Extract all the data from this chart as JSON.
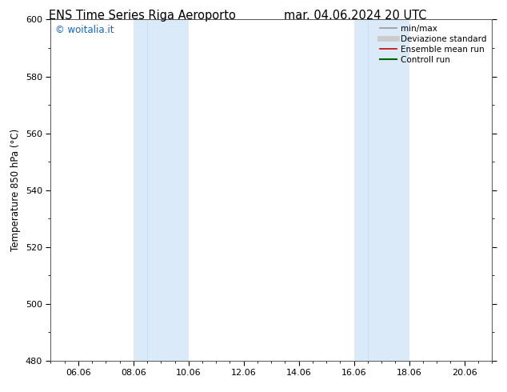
{
  "title_left": "ENS Time Series Riga Aeroporto",
  "title_right": "mar. 04.06.2024 20 UTC",
  "ylabel": "Temperature 850 hPa (°C)",
  "ylim": [
    480,
    600
  ],
  "yticks": [
    480,
    500,
    520,
    540,
    560,
    580,
    600
  ],
  "xlim": [
    0,
    16
  ],
  "xtick_labels": [
    "06.06",
    "08.06",
    "10.06",
    "12.06",
    "14.06",
    "16.06",
    "18.06",
    "20.06"
  ],
  "xtick_positions": [
    1,
    3,
    5,
    7,
    9,
    11,
    13,
    15
  ],
  "shade_bands": [
    {
      "x_start": 3.0,
      "x_end": 3.5,
      "color": "#daeaf8"
    },
    {
      "x_start": 3.5,
      "x_end": 5.0,
      "color": "#daeaf8"
    },
    {
      "x_start": 11.0,
      "x_end": 11.5,
      "color": "#daeaf8"
    },
    {
      "x_start": 11.5,
      "x_end": 13.0,
      "color": "#daeaf8"
    }
  ],
  "shade_bands_simple": [
    {
      "x_start": 3.0,
      "x_end": 5.0,
      "color": "#daeaf8"
    },
    {
      "x_start": 11.0,
      "x_end": 13.0,
      "color": "#daeaf8"
    }
  ],
  "band_dividers": [
    3.5,
    11.5
  ],
  "watermark": "© woitalia.it",
  "watermark_color": "#1565c0",
  "legend_items": [
    {
      "label": "min/max",
      "color": "#999999",
      "lw": 1.2
    },
    {
      "label": "Deviazione standard",
      "color": "#cccccc",
      "lw": 5
    },
    {
      "label": "Ensemble mean run",
      "color": "#cc0000",
      "lw": 1.2
    },
    {
      "label": "Controll run",
      "color": "#006600",
      "lw": 1.5
    }
  ],
  "bg_color": "#ffffff",
  "title_fontsize": 10.5,
  "tick_fontsize": 8,
  "ylabel_fontsize": 8.5
}
